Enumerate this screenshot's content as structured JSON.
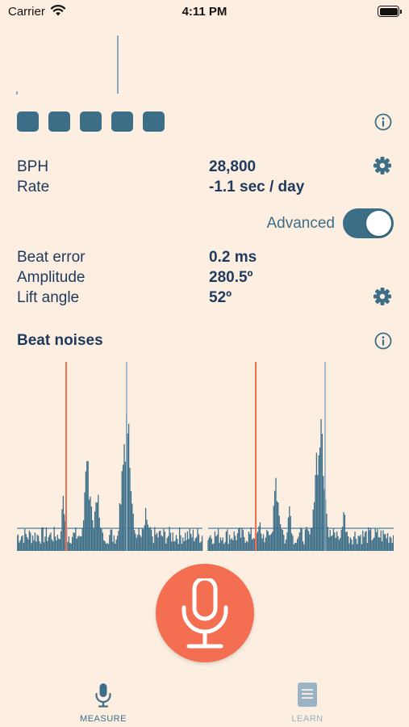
{
  "status_bar": {
    "carrier": "Carrier",
    "time": "4:11 PM"
  },
  "top_readings": [
    {
      "label": "BPH",
      "value": "28,800"
    },
    {
      "label": "Rate",
      "value": "-1.1 sec / day"
    }
  ],
  "advanced": {
    "label": "Advanced",
    "enabled": true
  },
  "advanced_readings": [
    {
      "label": "Beat error",
      "value": "0.2 ms"
    },
    {
      "label": "Amplitude",
      "value": "280.5º"
    },
    {
      "label": "Lift angle",
      "value": "52º"
    }
  ],
  "beat_noises": {
    "title": "Beat noises"
  },
  "tabs": [
    {
      "label": "MEASURE",
      "active": true
    },
    {
      "label": "LEARN",
      "active": false
    }
  ],
  "colors": {
    "background": "#fcefe2",
    "primary": "#3d6e88",
    "accent": "#f46e51",
    "text": "#1f3a5c",
    "inactive": "#9ab3c5"
  },
  "icons": {
    "wifi": "wifi-icon",
    "battery": "battery-icon",
    "info": "info-icon",
    "settings": "gear-icon",
    "microphone": "microphone-icon",
    "learn": "document-icon"
  }
}
